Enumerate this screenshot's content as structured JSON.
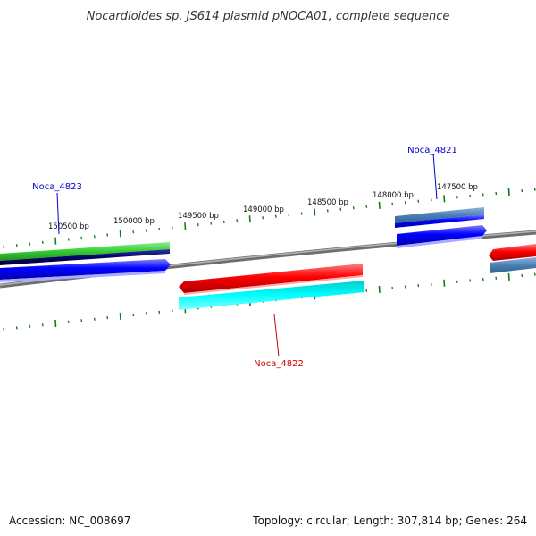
{
  "title": "Nocardioides sp. JS614 plasmid pNOCA01, complete sequence",
  "footer": {
    "accession": "Accession: NC_008697",
    "summary": "Topology: circular; Length: 307,814 bp; Genes: 264"
  },
  "ruler": {
    "labels": [
      "150500 bp",
      "150000 bp",
      "149500 bp",
      "149000 bp",
      "148500 bp",
      "148000 bp",
      "147500 bp"
    ]
  },
  "genes": [
    {
      "id": "noca-4823",
      "label": "Noca_4823",
      "color": "#0000cc"
    },
    {
      "id": "noca-4822",
      "label": "Noca_4822",
      "color": "#cc0000"
    },
    {
      "id": "noca-4821",
      "label": "Noca_4821",
      "color": "#0000cc"
    }
  ],
  "colors": {
    "backbone": "#808080",
    "tick": "#1a7a1a",
    "cds_blue": "#0000ff",
    "cds_red": "#ff0000",
    "cds_cyan": "#00ffff",
    "cds_green": "#33cc33",
    "cds_navy": "#000066",
    "cds_steel": "#4a7fb5"
  }
}
